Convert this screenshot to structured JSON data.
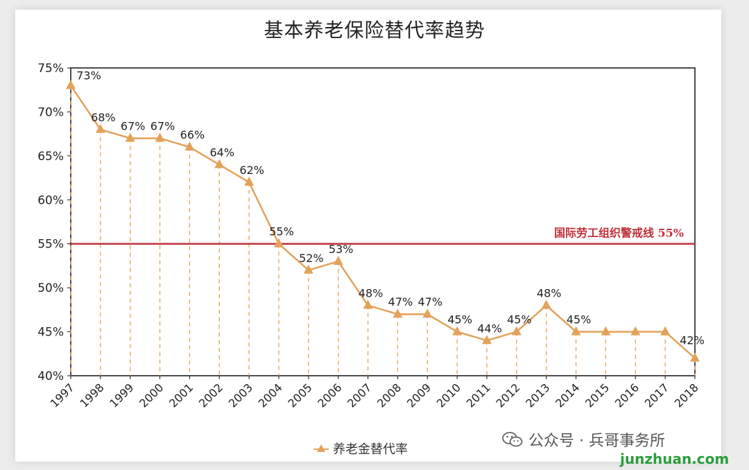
{
  "chart_data": {
    "type": "line",
    "title": "基本养老保险替代率趋势",
    "categories": [
      "1997",
      "1998",
      "1999",
      "2000",
      "2001",
      "2002",
      "2003",
      "2004",
      "2005",
      "2006",
      "2007",
      "2008",
      "2009",
      "2010",
      "2011",
      "2012",
      "2013",
      "2014",
      "2015",
      "2016",
      "2017",
      "2018"
    ],
    "series": [
      {
        "name": "养老金替代率",
        "values": [
          73,
          68,
          67,
          67,
          66,
          64,
          62,
          55,
          52,
          53,
          48,
          47,
          47,
          45,
          44,
          45,
          48,
          45,
          45,
          45,
          45,
          42
        ],
        "data_labels": [
          "73%",
          "68%",
          "67%",
          "67%",
          "66%",
          "64%",
          "62%",
          "55%",
          "52%",
          "53%",
          "48%",
          "47%",
          "47%",
          "45%",
          "44%",
          "45%",
          "48%",
          "45%",
          "",
          "",
          "",
          "42%"
        ],
        "color": "#E3A25A",
        "marker": "triangle"
      }
    ],
    "yticks": [
      "40%",
      "45%",
      "50%",
      "55%",
      "60%",
      "65%",
      "70%",
      "75%"
    ],
    "ylim": [
      40,
      75
    ],
    "reference_line": {
      "value": 55,
      "label": "国际劳工组织警戒线  55%",
      "color": "#C0313A"
    },
    "drop_lines": true,
    "legend_position": "bottom",
    "grid": false
  },
  "watermark": {
    "wechat_text": "公众号 · 兵哥事务所",
    "site_text": "junzhuan.com"
  }
}
